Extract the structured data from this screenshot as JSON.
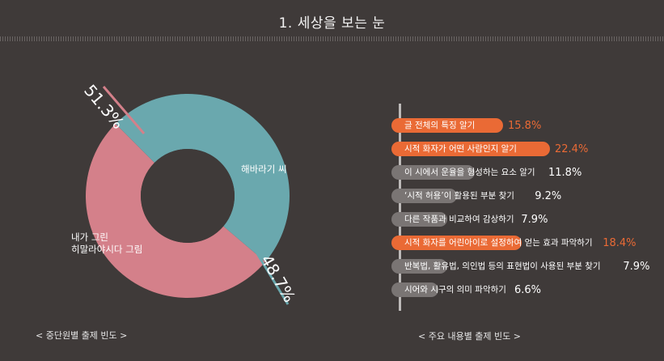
{
  "header": {
    "title": "1. 세상을 보는 눈"
  },
  "colors": {
    "background": "#3f3a39",
    "pink": "#d4808a",
    "teal": "#6aa8ae",
    "orange": "#ea6a35",
    "gray": "#7a7574",
    "white": "#ffffff"
  },
  "chart_data": [
    {
      "type": "pie",
      "title": "< 중단원별 출제 빈도 >",
      "slices": [
        {
          "label": "내가 그린 히말라야시다 그림",
          "value": 51.3,
          "value_label": "51.3%",
          "color": "#d4808a"
        },
        {
          "label": "해바라기 씨",
          "value": 48.7,
          "value_label": "48.7%",
          "color": "#6aa8ae"
        }
      ]
    },
    {
      "type": "bar",
      "orientation": "horizontal",
      "title": "< 주요 내용별 출제 빈도 >",
      "categories": [
        "글 전체의 특징 알기",
        "시적 화자가 어떤 사람인지 알기",
        "이 시에서 운율을 형성하는 요소 알기",
        "‘시적 허용’이 활용된 부분 찾기",
        "다른 작품과 비교하여 감상하기",
        "시적 화자를 어린아이로 설정하여 얻는 효과 파악하기",
        "반복법, 활유법, 의인법 등의 표현법이 사용된 부분 찾기",
        "시어와 시구의 의미 파악하기"
      ],
      "values": [
        15.8,
        22.4,
        11.8,
        9.2,
        7.9,
        18.4,
        7.9,
        6.6
      ],
      "value_labels": [
        "15.8%",
        "22.4%",
        "11.8%",
        "9.2%",
        "7.9%",
        "18.4%",
        "7.9%",
        "6.6%"
      ],
      "highlighted": [
        true,
        true,
        false,
        false,
        false,
        true,
        false,
        false
      ]
    }
  ]
}
